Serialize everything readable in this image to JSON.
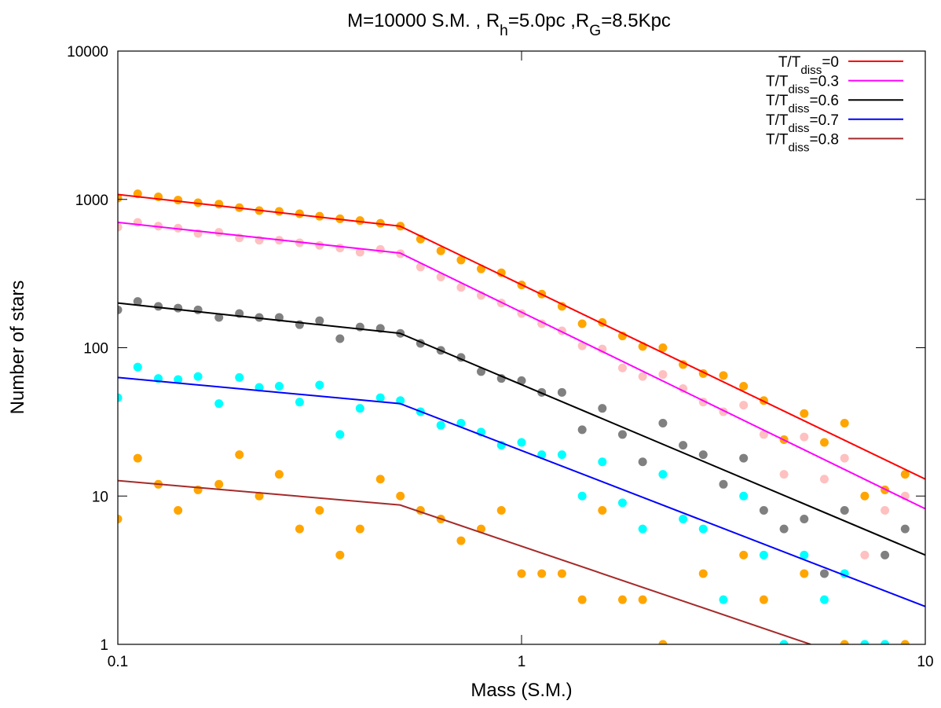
{
  "chart_data": {
    "type": "scatter",
    "title": [
      "M=10000 S.M. , R",
      "h",
      "=5.0pc ,R",
      "G",
      "=8.5Kpc"
    ],
    "x_label": "Mass (S.M.)",
    "y_label": "Number of stars",
    "x_log": true,
    "y_log": true,
    "xlim": [
      0.1,
      10
    ],
    "ylim": [
      1,
      10000
    ],
    "xticks": [
      0.1,
      1,
      10
    ],
    "yticks": [
      1,
      10,
      100,
      1000,
      10000
    ],
    "x": [
      0.1,
      0.112,
      0.126,
      0.141,
      0.158,
      0.178,
      0.2,
      0.224,
      0.251,
      0.282,
      0.316,
      0.355,
      0.398,
      0.447,
      0.501,
      0.562,
      0.631,
      0.708,
      0.794,
      0.891,
      1.0,
      1.122,
      1.259,
      1.413,
      1.585,
      1.778,
      1.995,
      2.239,
      2.512,
      2.818,
      3.162,
      3.548,
      3.981,
      4.467,
      5.012,
      5.623,
      6.31,
      7.079,
      7.943,
      8.913
    ],
    "series": [
      {
        "type": "scatter",
        "color": "#ffa500",
        "values": [
          1020,
          1090,
          1040,
          990,
          950,
          930,
          880,
          840,
          830,
          800,
          770,
          740,
          720,
          690,
          660,
          540,
          450,
          390,
          340,
          320,
          265,
          230,
          190,
          145,
          148,
          120,
          102,
          100,
          77,
          67,
          65,
          55,
          44,
          24,
          36,
          23,
          31,
          10,
          11,
          14
        ]
      },
      {
        "type": "scatter",
        "color": "#ffc0c0",
        "values": [
          650,
          700,
          660,
          640,
          590,
          600,
          550,
          530,
          530,
          510,
          490,
          470,
          440,
          460,
          430,
          350,
          300,
          255,
          225,
          200,
          170,
          145,
          130,
          103,
          98,
          73,
          64,
          66,
          53,
          43,
          37,
          41,
          26,
          14,
          25,
          13,
          18,
          4,
          8,
          10
        ]
      },
      {
        "type": "scatter",
        "color": "#808080",
        "values": [
          180,
          205,
          190,
          185,
          180,
          160,
          170,
          160,
          160,
          143,
          152,
          115,
          138,
          135,
          125,
          107,
          96,
          86,
          69,
          62,
          60,
          50,
          50,
          28,
          39,
          26,
          17,
          31,
          22,
          19,
          12,
          18,
          8,
          6,
          7,
          3,
          8,
          null,
          4,
          6
        ]
      },
      {
        "type": "scatter",
        "color": "#00ffff",
        "values": [
          46,
          74,
          62,
          61,
          64,
          42,
          63,
          54,
          55,
          43,
          56,
          26,
          39,
          46,
          44,
          37,
          30,
          31,
          27,
          22,
          23,
          19,
          19,
          10,
          17,
          9,
          6,
          14,
          7,
          6,
          2,
          10,
          4,
          1,
          4,
          2,
          3,
          1,
          1,
          null
        ]
      },
      {
        "type": "scatter",
        "color": "#ffa500",
        "values": [
          7,
          18,
          12,
          8,
          11,
          12,
          19,
          10,
          14,
          6,
          8,
          4,
          6,
          13,
          10,
          8,
          7,
          5,
          6,
          8,
          3,
          3,
          3,
          2,
          8,
          2,
          2,
          1,
          null,
          3,
          null,
          4,
          2,
          null,
          3,
          null,
          1,
          null,
          null,
          1
        ]
      },
      {
        "type": "line",
        "name": [
          "T/T",
          "diss",
          "=0"
        ],
        "color": "#ff0000",
        "x": [
          0.1,
          0.5,
          10
        ],
        "values": [
          1080,
          660,
          13
        ]
      },
      {
        "type": "line",
        "name": [
          "T/T",
          "diss",
          "=0.3"
        ],
        "color": "#ff00ff",
        "x": [
          0.1,
          0.5,
          10
        ],
        "values": [
          700,
          435,
          8.2
        ]
      },
      {
        "type": "line",
        "name": [
          "T/T",
          "diss",
          "=0.6"
        ],
        "color": "#000000",
        "x": [
          0.1,
          0.5,
          10
        ],
        "values": [
          200,
          125,
          4
        ]
      },
      {
        "type": "line",
        "name": [
          "T/T",
          "diss",
          "=0.7"
        ],
        "color": "#0000ff",
        "x": [
          0.1,
          0.5,
          10
        ],
        "values": [
          63,
          42,
          1.8
        ]
      },
      {
        "type": "line",
        "name": [
          "T/T",
          "diss",
          "=0.8"
        ],
        "color": "#a52a2a",
        "x": [
          0.1,
          0.5,
          5.2
        ],
        "values": [
          12.7,
          8.7,
          1
        ]
      }
    ],
    "legend": "top-right"
  }
}
